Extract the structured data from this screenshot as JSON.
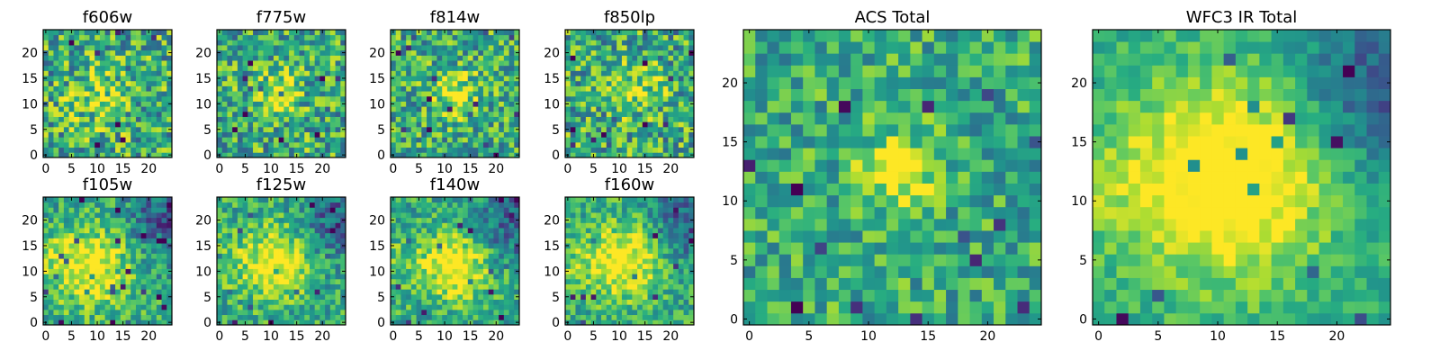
{
  "chart_data": [
    {
      "type": "heatmap",
      "title": "f606w",
      "grid_size": 25,
      "xticks": [
        0,
        5,
        10,
        15,
        20
      ],
      "yticks": [
        0,
        5,
        10,
        15,
        20
      ],
      "colormap": "viridis",
      "noise": 0.42,
      "bright_center": [
        10.5,
        11
      ],
      "bright_amp": 0.22,
      "bright_sigma": 4,
      "dark_corner": false,
      "seed": 11
    },
    {
      "type": "heatmap",
      "title": "f775w",
      "grid_size": 25,
      "xticks": [
        0,
        5,
        10,
        15,
        20
      ],
      "yticks": [
        0,
        5,
        10,
        15,
        20
      ],
      "colormap": "viridis",
      "noise": 0.4,
      "bright_center": [
        11,
        12
      ],
      "bright_amp": 0.35,
      "bright_sigma": 3,
      "dark_corner": false,
      "seed": 23
    },
    {
      "type": "heatmap",
      "title": "f814w",
      "grid_size": 25,
      "xticks": [
        0,
        5,
        10,
        15,
        20
      ],
      "yticks": [
        0,
        5,
        10,
        15,
        20
      ],
      "colormap": "viridis",
      "noise": 0.38,
      "bright_center": [
        12,
        12
      ],
      "bright_amp": 0.35,
      "bright_sigma": 3,
      "dark_corner": false,
      "seed": 37
    },
    {
      "type": "heatmap",
      "title": "f850lp",
      "grid_size": 25,
      "xticks": [
        0,
        5,
        10,
        15,
        20
      ],
      "yticks": [
        0,
        5,
        10,
        15,
        20
      ],
      "colormap": "viridis",
      "noise": 0.4,
      "bright_center": [
        13,
        13
      ],
      "bright_amp": 0.25,
      "bright_sigma": 3.5,
      "dark_corner": false,
      "seed": 51
    },
    {
      "type": "heatmap",
      "title": "f105w",
      "grid_size": 25,
      "xticks": [
        0,
        5,
        10,
        15,
        20
      ],
      "yticks": [
        0,
        5,
        10,
        15,
        20
      ],
      "colormap": "viridis",
      "noise": 0.28,
      "bright_center": [
        9,
        11
      ],
      "bright_amp": 0.45,
      "bright_sigma": 5,
      "dark_corner": true,
      "seed": 67
    },
    {
      "type": "heatmap",
      "title": "f125w",
      "grid_size": 25,
      "xticks": [
        0,
        5,
        10,
        15,
        20
      ],
      "yticks": [
        0,
        5,
        10,
        15,
        20
      ],
      "colormap": "viridis",
      "noise": 0.28,
      "bright_center": [
        11,
        12
      ],
      "bright_amp": 0.45,
      "bright_sigma": 4.5,
      "dark_corner": true,
      "seed": 79
    },
    {
      "type": "heatmap",
      "title": "f140w",
      "grid_size": 25,
      "xticks": [
        0,
        5,
        10,
        15,
        20
      ],
      "yticks": [
        0,
        5,
        10,
        15,
        20
      ],
      "colormap": "viridis",
      "noise": 0.28,
      "bright_center": [
        12,
        11
      ],
      "bright_amp": 0.45,
      "bright_sigma": 4.5,
      "dark_corner": true,
      "seed": 91
    },
    {
      "type": "heatmap",
      "title": "f160w",
      "grid_size": 25,
      "xticks": [
        0,
        5,
        10,
        15,
        20
      ],
      "yticks": [
        0,
        5,
        10,
        15,
        20
      ],
      "colormap": "viridis",
      "noise": 0.26,
      "bright_center": [
        11,
        12
      ],
      "bright_amp": 0.45,
      "bright_sigma": 5,
      "dark_corner": true,
      "seed": 103
    },
    {
      "type": "heatmap",
      "title": "ACS Total",
      "grid_size": 25,
      "xticks": [
        0,
        5,
        10,
        15,
        20
      ],
      "yticks": [
        0,
        5,
        10,
        15,
        20
      ],
      "colormap": "viridis",
      "noise": 0.3,
      "bright_center": [
        12.5,
        12.5
      ],
      "bright_amp": 0.45,
      "bright_sigma": 2.2,
      "dark_corner": false,
      "seed": 131
    },
    {
      "type": "heatmap",
      "title": "WFC3 IR Total",
      "grid_size": 25,
      "xticks": [
        0,
        5,
        10,
        15,
        20
      ],
      "yticks": [
        0,
        5,
        10,
        15,
        20
      ],
      "colormap": "viridis",
      "noise": 0.16,
      "bright_center": [
        11,
        12
      ],
      "bright_amp": 0.55,
      "bright_sigma": 6,
      "dark_corner": true,
      "seed": 157
    }
  ]
}
